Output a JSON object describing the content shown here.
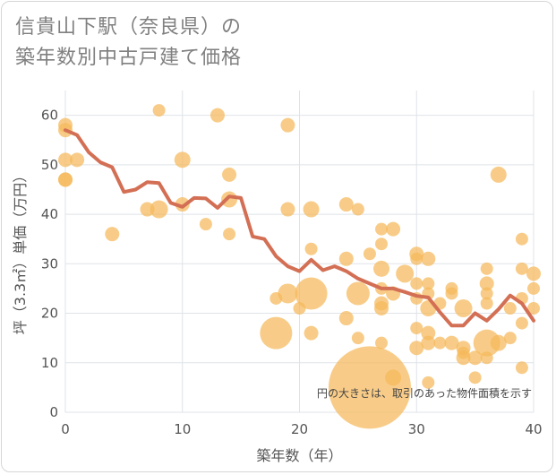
{
  "header": {
    "title_line1": "信貴山下駅（奈良県）の",
    "title_line2": "築年数別中古戸建て価格"
  },
  "colors": {
    "bubble": "#f5b95a",
    "line": "#d36f54",
    "grid": "#dfe3e8",
    "text": "#555555"
  },
  "chart_data": {
    "type": "scatter",
    "title": "信貴山下駅（奈良県）の築年数別中古戸建て価格",
    "xlabel": "築年数（年）",
    "ylabel": "坪（3.3㎡）単価（万円）",
    "xlim": [
      0,
      40
    ],
    "ylim": [
      0,
      65
    ],
    "x_ticks": [
      "0",
      "10",
      "20",
      "30",
      "40"
    ],
    "y_ticks": [
      "0",
      "10",
      "20",
      "30",
      "40",
      "50",
      "60"
    ],
    "grid": true,
    "note": "円の大きさは、取引のあった物件面積を示す",
    "bubbles": [
      {
        "x": 0,
        "y": 58,
        "s": 8
      },
      {
        "x": 0,
        "y": 57,
        "s": 8
      },
      {
        "x": 0,
        "y": 51,
        "s": 8
      },
      {
        "x": 0,
        "y": 47,
        "s": 8
      },
      {
        "x": 0,
        "y": 47,
        "s": 8
      },
      {
        "x": 1,
        "y": 51,
        "s": 8
      },
      {
        "x": 4,
        "y": 36,
        "s": 8
      },
      {
        "x": 7,
        "y": 41,
        "s": 8
      },
      {
        "x": 8,
        "y": 61,
        "s": 7
      },
      {
        "x": 8,
        "y": 41,
        "s": 10
      },
      {
        "x": 10,
        "y": 51,
        "s": 9
      },
      {
        "x": 10,
        "y": 42,
        "s": 8
      },
      {
        "x": 12,
        "y": 38,
        "s": 7
      },
      {
        "x": 13,
        "y": 60,
        "s": 8
      },
      {
        "x": 14,
        "y": 48,
        "s": 8
      },
      {
        "x": 14,
        "y": 43,
        "s": 9
      },
      {
        "x": 14,
        "y": 36,
        "s": 7
      },
      {
        "x": 18,
        "y": 23,
        "s": 7
      },
      {
        "x": 18,
        "y": 16,
        "s": 18
      },
      {
        "x": 19,
        "y": 58,
        "s": 8
      },
      {
        "x": 19,
        "y": 41,
        "s": 8
      },
      {
        "x": 19,
        "y": 24,
        "s": 11
      },
      {
        "x": 20,
        "y": 21,
        "s": 7
      },
      {
        "x": 21,
        "y": 41,
        "s": 9
      },
      {
        "x": 21,
        "y": 33,
        "s": 7
      },
      {
        "x": 21,
        "y": 24,
        "s": 18
      },
      {
        "x": 21,
        "y": 16,
        "s": 8
      },
      {
        "x": 24,
        "y": 42,
        "s": 8
      },
      {
        "x": 24,
        "y": 31,
        "s": 8
      },
      {
        "x": 24,
        "y": 19,
        "s": 8
      },
      {
        "x": 25,
        "y": 41,
        "s": 7
      },
      {
        "x": 25,
        "y": 24,
        "s": 13
      },
      {
        "x": 25,
        "y": 15,
        "s": 7
      },
      {
        "x": 26,
        "y": 32,
        "s": 7
      },
      {
        "x": 26,
        "y": 5,
        "s": 46
      },
      {
        "x": 27,
        "y": 37,
        "s": 7
      },
      {
        "x": 27,
        "y": 34,
        "s": 7
      },
      {
        "x": 27,
        "y": 29,
        "s": 9
      },
      {
        "x": 27,
        "y": 25,
        "s": 7
      },
      {
        "x": 27,
        "y": 22,
        "s": 8
      },
      {
        "x": 27,
        "y": 21,
        "s": 8
      },
      {
        "x": 27,
        "y": 14,
        "s": 7
      },
      {
        "x": 28,
        "y": 37,
        "s": 8
      },
      {
        "x": 28,
        "y": 24,
        "s": 8
      },
      {
        "x": 28,
        "y": 7,
        "s": 9
      },
      {
        "x": 29,
        "y": 28,
        "s": 10
      },
      {
        "x": 30,
        "y": 32,
        "s": 8
      },
      {
        "x": 30,
        "y": 31,
        "s": 7
      },
      {
        "x": 30,
        "y": 26,
        "s": 7
      },
      {
        "x": 30,
        "y": 23,
        "s": 7
      },
      {
        "x": 30,
        "y": 17,
        "s": 7
      },
      {
        "x": 30,
        "y": 13,
        "s": 8
      },
      {
        "x": 31,
        "y": 31,
        "s": 8
      },
      {
        "x": 31,
        "y": 26,
        "s": 7
      },
      {
        "x": 31,
        "y": 24,
        "s": 7
      },
      {
        "x": 31,
        "y": 21,
        "s": 9
      },
      {
        "x": 31,
        "y": 16,
        "s": 8
      },
      {
        "x": 31,
        "y": 14,
        "s": 8
      },
      {
        "x": 31,
        "y": 6,
        "s": 7
      },
      {
        "x": 32,
        "y": 22,
        "s": 7
      },
      {
        "x": 32,
        "y": 14,
        "s": 7
      },
      {
        "x": 33,
        "y": 25,
        "s": 7
      },
      {
        "x": 33,
        "y": 24,
        "s": 7
      },
      {
        "x": 33,
        "y": 14,
        "s": 8
      },
      {
        "x": 34,
        "y": 21,
        "s": 10
      },
      {
        "x": 34,
        "y": 13,
        "s": 8
      },
      {
        "x": 34,
        "y": 12,
        "s": 7
      },
      {
        "x": 34,
        "y": 11,
        "s": 8
      },
      {
        "x": 35,
        "y": 11,
        "s": 8
      },
      {
        "x": 35,
        "y": 7,
        "s": 7
      },
      {
        "x": 36,
        "y": 29,
        "s": 7
      },
      {
        "x": 36,
        "y": 26,
        "s": 8
      },
      {
        "x": 36,
        "y": 24,
        "s": 7
      },
      {
        "x": 36,
        "y": 22,
        "s": 7
      },
      {
        "x": 36,
        "y": 14,
        "s": 15
      },
      {
        "x": 36,
        "y": 11,
        "s": 7
      },
      {
        "x": 37,
        "y": 48,
        "s": 9
      },
      {
        "x": 37,
        "y": 14,
        "s": 9
      },
      {
        "x": 38,
        "y": 21,
        "s": 7
      },
      {
        "x": 38,
        "y": 15,
        "s": 7
      },
      {
        "x": 39,
        "y": 35,
        "s": 7
      },
      {
        "x": 39,
        "y": 29,
        "s": 7
      },
      {
        "x": 39,
        "y": 23,
        "s": 7
      },
      {
        "x": 39,
        "y": 18,
        "s": 7
      },
      {
        "x": 39,
        "y": 9,
        "s": 7
      },
      {
        "x": 40,
        "y": 28,
        "s": 8
      },
      {
        "x": 40,
        "y": 25,
        "s": 7
      },
      {
        "x": 40,
        "y": 21,
        "s": 7
      }
    ],
    "trend": {
      "x": [
        0,
        1,
        2,
        3,
        4,
        5,
        6,
        7,
        8,
        9,
        10,
        11,
        12,
        13,
        14,
        15,
        16,
        17,
        18,
        19,
        20,
        21,
        22,
        23,
        24,
        25,
        26,
        27,
        28,
        29,
        30,
        31,
        32,
        33,
        34,
        35,
        36,
        37,
        38,
        39,
        40
      ],
      "y": [
        57,
        56,
        52.5,
        50.5,
        49.5,
        44.5,
        45,
        46.5,
        46.3,
        42.3,
        41.5,
        43.3,
        43.2,
        41.3,
        43.6,
        43.3,
        35.5,
        35,
        31.5,
        29.5,
        28.5,
        30.8,
        28.7,
        29.5,
        28.5,
        27,
        26,
        25,
        25,
        24.3,
        23.5,
        23.2,
        20.2,
        17.5,
        17.5,
        20,
        18.5,
        20.8,
        23.6,
        22,
        18.5
      ]
    }
  }
}
